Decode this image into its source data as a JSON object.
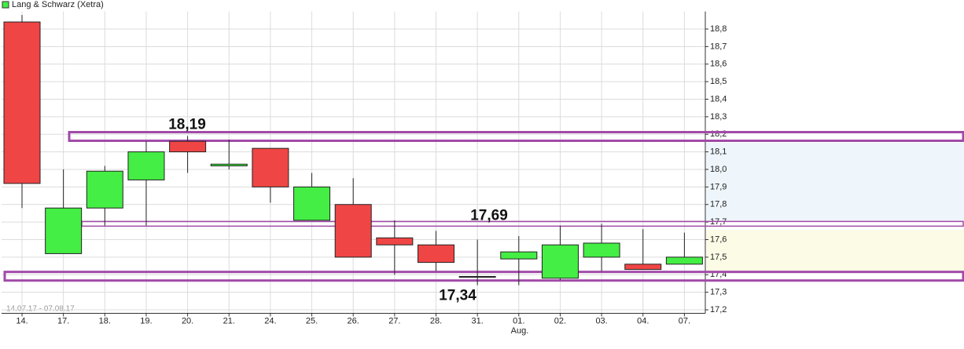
{
  "chart_data": {
    "type": "candlestick",
    "legend": "Lang & Schwarz (Xetra)",
    "range_label": "14.07.17 - 07.08.17",
    "month_label": "Aug.",
    "up_color": "#44ee44",
    "down_color": "#f04545",
    "categories": [
      "14.",
      "17.",
      "18.",
      "19.",
      "20.",
      "21.",
      "24.",
      "25.",
      "26.",
      "27.",
      "28.",
      "31.",
      "01.",
      "02.",
      "03.",
      "04.",
      "07."
    ],
    "open": [
      18.84,
      17.52,
      17.78,
      17.94,
      18.16,
      18.02,
      18.12,
      17.71,
      17.8,
      17.61,
      17.57,
      17.39,
      17.49,
      17.38,
      17.5,
      17.46,
      17.46
    ],
    "high": [
      18.88,
      18.0,
      18.02,
      18.16,
      18.19,
      18.17,
      18.12,
      17.98,
      17.95,
      17.71,
      17.65,
      17.6,
      17.62,
      17.68,
      17.69,
      17.66,
      17.64
    ],
    "low": [
      17.78,
      17.52,
      17.68,
      17.68,
      17.98,
      18.0,
      17.81,
      17.71,
      17.5,
      17.4,
      17.42,
      17.34,
      17.34,
      17.37,
      17.42,
      17.43,
      17.46
    ],
    "close": [
      17.92,
      17.78,
      17.99,
      18.1,
      18.1,
      18.03,
      17.9,
      17.9,
      17.5,
      17.57,
      17.47,
      17.39,
      17.53,
      17.57,
      17.58,
      17.43,
      17.5
    ],
    "ylim": [
      17.18,
      18.9
    ],
    "yticks": [
      {
        "value": 17.2,
        "label": "17,2"
      },
      {
        "value": 17.3,
        "label": "17,3"
      },
      {
        "value": 17.4,
        "label": "17,4"
      },
      {
        "value": 17.5,
        "label": "17,5"
      },
      {
        "value": 17.6,
        "label": "17,6"
      },
      {
        "value": 17.7,
        "label": "17,7"
      },
      {
        "value": 17.8,
        "label": "17,8"
      },
      {
        "value": 17.9,
        "label": "17,9"
      },
      {
        "value": 18.0,
        "label": "18,0"
      },
      {
        "value": 18.1,
        "label": "18,1"
      },
      {
        "value": 18.2,
        "label": "18,2"
      },
      {
        "value": 18.3,
        "label": "18,3"
      },
      {
        "value": 18.4,
        "label": "18,4"
      },
      {
        "value": 18.5,
        "label": "18,5"
      },
      {
        "value": 18.6,
        "label": "18,6"
      },
      {
        "value": 18.7,
        "label": "18,7"
      },
      {
        "value": 18.8,
        "label": "18,8"
      }
    ],
    "levels": [
      {
        "value": 18.19,
        "label": "18,19"
      },
      {
        "value": 17.69,
        "label": "17,69"
      },
      {
        "value": 17.34,
        "label": "17,34"
      }
    ],
    "grid": true
  }
}
